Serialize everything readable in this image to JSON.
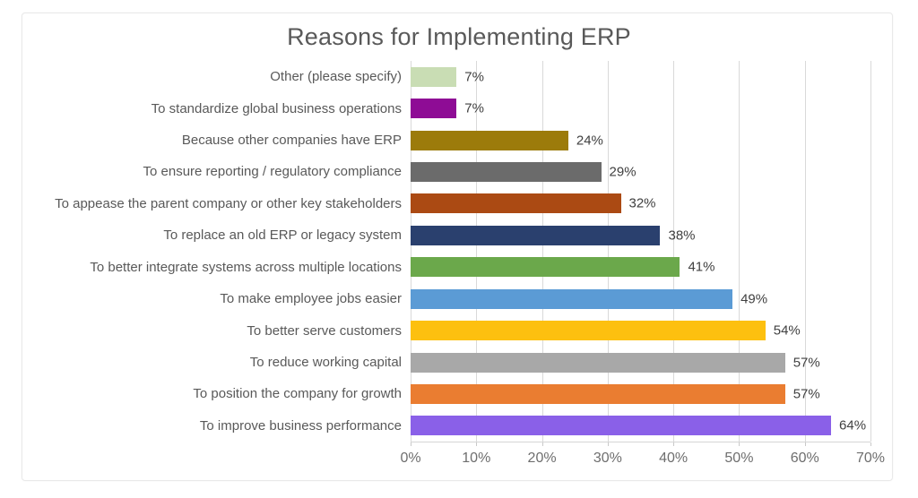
{
  "title": "Reasons for Implementing ERP",
  "colors": {
    "title_text": "#595959",
    "category_text": "#595959",
    "value_text": "#404040",
    "axis_text": "#6e6e6e",
    "gridline": "#d9d9d9",
    "frame_border": "#e9e9e9",
    "background": "#ffffff"
  },
  "chart_data": {
    "type": "bar",
    "orientation": "horizontal",
    "title": "Reasons for Implementing ERP",
    "categories": [
      "Other (please specify)",
      "To standardize global business operations",
      "Because other companies have ERP",
      "To ensure reporting / regulatory compliance",
      "To appease the parent company or other key stakeholders",
      "To replace an old ERP or legacy system",
      "To better integrate systems across multiple locations",
      "To make employee jobs easier",
      "To better serve customers",
      "To reduce working capital",
      "To position the company for growth",
      "To improve business performance"
    ],
    "values": [
      7,
      7,
      24,
      29,
      32,
      38,
      41,
      49,
      54,
      57,
      57,
      64
    ],
    "value_labels": [
      "7%",
      "7%",
      "24%",
      "29%",
      "32%",
      "38%",
      "41%",
      "49%",
      "54%",
      "57%",
      "57%",
      "64%"
    ],
    "bar_colors": [
      "#c9ddb4",
      "#8e0c95",
      "#9c7b0b",
      "#6b6b6b",
      "#ab4a13",
      "#2a406e",
      "#6ba84b",
      "#5b9bd5",
      "#fdc00f",
      "#a8a8a8",
      "#ea7d31",
      "#8a60e8"
    ],
    "xlim": [
      0,
      70
    ],
    "x_tick_labels": [
      "0%",
      "10%",
      "20%",
      "30%",
      "40%",
      "50%",
      "60%",
      "70%"
    ],
    "grid": true,
    "legend": "none"
  }
}
